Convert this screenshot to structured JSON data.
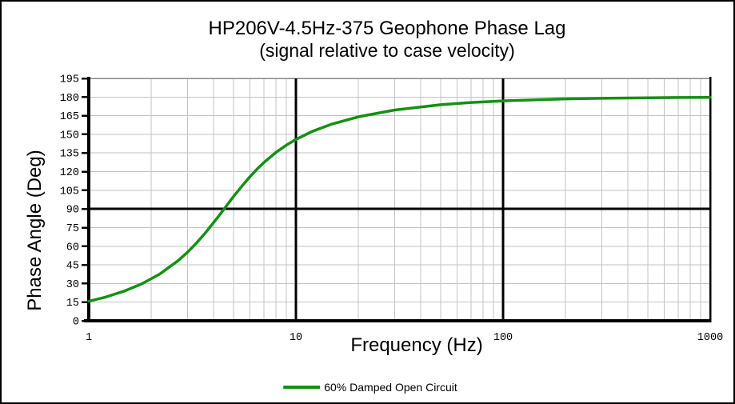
{
  "chart_data": {
    "type": "line",
    "title": "HP206V-4.5Hz-375 Geophone Phase Lag",
    "subtitle": "(signal relative to case velocity)",
    "xlabel": "Frequency (Hz)",
    "ylabel": "Phase Angle (Deg)",
    "x_scale": "log",
    "xlim": [
      1,
      1000
    ],
    "ylim": [
      0,
      195
    ],
    "x_ticks": [
      1,
      10,
      100,
      1000
    ],
    "y_ticks": [
      0,
      15,
      30,
      45,
      60,
      75,
      90,
      105,
      120,
      135,
      150,
      165,
      180,
      195
    ],
    "y_tick_step": 15,
    "grid": true,
    "minor_log_grid": true,
    "emphasis_lines": {
      "x": [
        10,
        100
      ],
      "y": [
        90
      ]
    },
    "legend_position": "bottom",
    "colors": {
      "background": "#ffffff",
      "frame": "#000000",
      "minor_grid": "#c3c3c3",
      "top_border": "#878787",
      "axis": "#000000"
    },
    "series": [
      {
        "name": "60% Damped Open Circuit",
        "color": "#149014",
        "points": [
          [
            1,
            15.7
          ],
          [
            1.2,
            19.0
          ],
          [
            1.5,
            24.2
          ],
          [
            1.8,
            29.7
          ],
          [
            2.2,
            37.6
          ],
          [
            2.7,
            48.4
          ],
          [
            3,
            55.2
          ],
          [
            3.3,
            62.3
          ],
          [
            3.65,
            70.6
          ],
          [
            4,
            78.9
          ],
          [
            4.25,
            84.5
          ],
          [
            4.5,
            90
          ],
          [
            4.75,
            95.2
          ],
          [
            5,
            100
          ],
          [
            5.5,
            108.6
          ],
          [
            6,
            115.9
          ],
          [
            6.5,
            122.1
          ],
          [
            7,
            127.3
          ],
          [
            8,
            135.4
          ],
          [
            9,
            141.3
          ],
          [
            10,
            145.9
          ],
          [
            12,
            152.4
          ],
          [
            15,
            158.4
          ],
          [
            20,
            164.1
          ],
          [
            30,
            169.6
          ],
          [
            50,
            173.8
          ],
          [
            70,
            175.6
          ],
          [
            100,
            176.9
          ],
          [
            150,
            177.9
          ],
          [
            200,
            178.5
          ],
          [
            300,
            179.0
          ],
          [
            500,
            179.4
          ],
          [
            700,
            179.6
          ],
          [
            1000,
            179.7
          ]
        ]
      }
    ]
  }
}
